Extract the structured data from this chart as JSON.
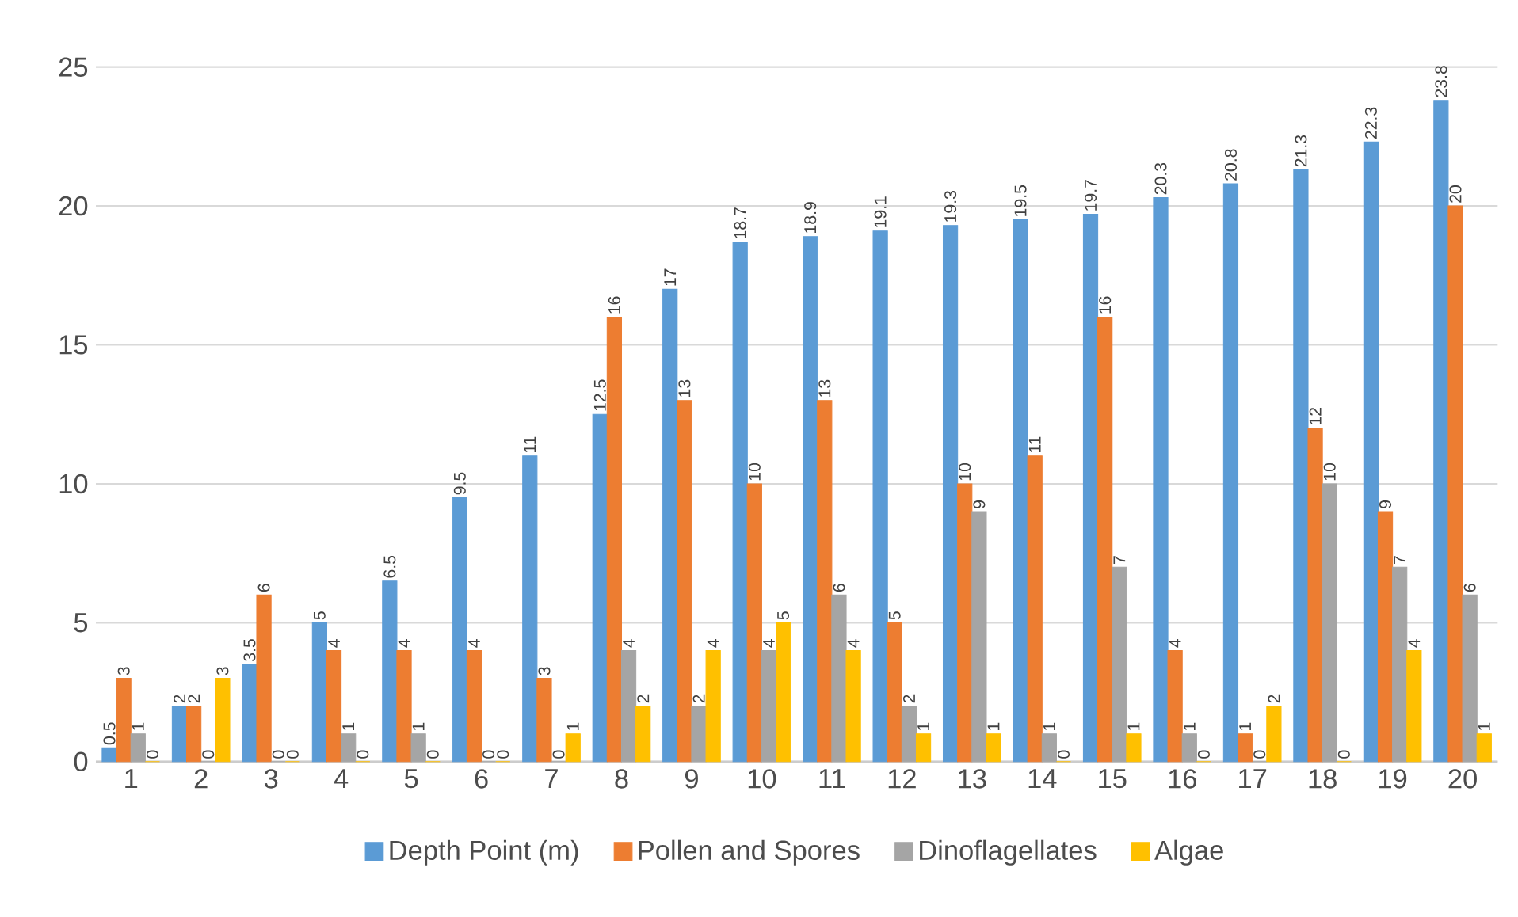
{
  "chart_data": {
    "type": "bar",
    "categories": [
      "1",
      "2",
      "3",
      "4",
      "5",
      "6",
      "7",
      "8",
      "9",
      "10",
      "11",
      "12",
      "13",
      "14",
      "15",
      "16",
      "17",
      "18",
      "19",
      "20"
    ],
    "series": [
      {
        "name": "Depth Point (m)",
        "color": "#5b9bd5",
        "values": [
          0.5,
          2,
          3.5,
          5,
          6.5,
          9.5,
          11,
          12.5,
          17,
          18.7,
          18.9,
          19.1,
          19.3,
          19.5,
          19.7,
          20.3,
          20.8,
          21.3,
          22.3,
          23.8
        ]
      },
      {
        "name": "Pollen and Spores",
        "color": "#ed7d31",
        "values": [
          3,
          2,
          6,
          4,
          4,
          4,
          3,
          16,
          13,
          10,
          13,
          5,
          10,
          11,
          16,
          4,
          1,
          12,
          9,
          20
        ]
      },
      {
        "name": "Dinoflagellates",
        "color": "#a5a5a5",
        "values": [
          1,
          0,
          0,
          1,
          1,
          0,
          0,
          4,
          2,
          4,
          6,
          2,
          9,
          1,
          7,
          1,
          0,
          10,
          7,
          6
        ]
      },
      {
        "name": "Algae",
        "color": "#ffc000",
        "values": [
          0,
          3,
          0,
          0,
          0,
          0,
          1,
          2,
          4,
          5,
          4,
          1,
          1,
          0,
          1,
          0,
          2,
          0,
          4,
          1
        ]
      }
    ],
    "ylim": [
      0,
      25
    ],
    "yticks": [
      0,
      5,
      10,
      15,
      20,
      25
    ],
    "grid": "y",
    "legend": "bottom",
    "data_labels": true
  }
}
